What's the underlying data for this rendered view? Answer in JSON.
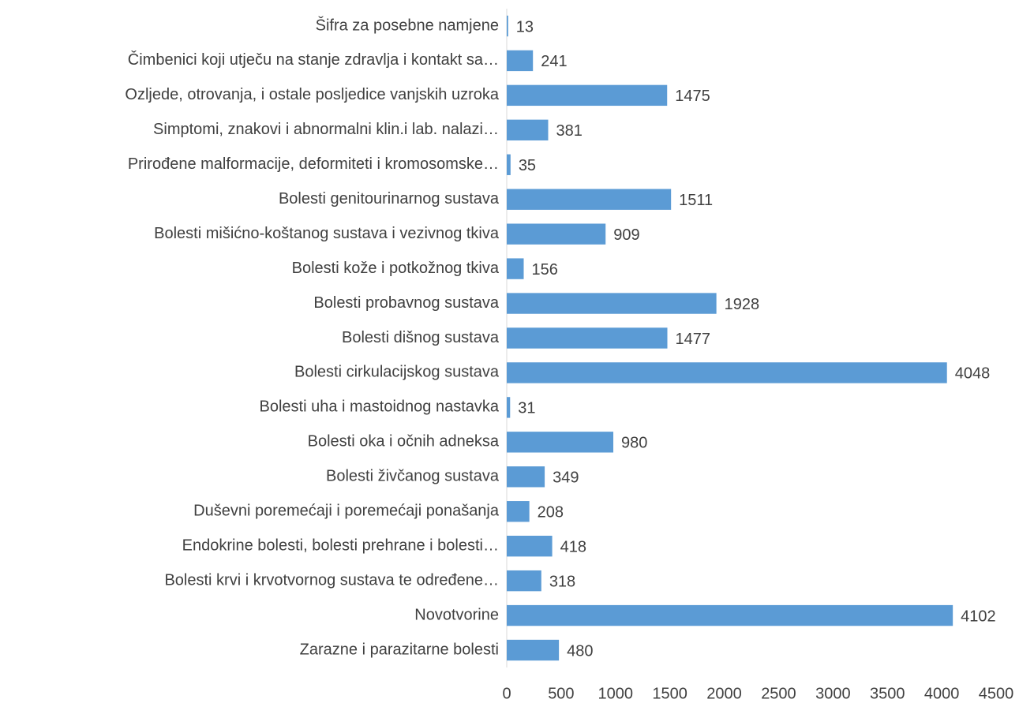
{
  "chart_data": {
    "type": "bar",
    "categories": [
      "Šifra za posebne namjene",
      "Čimbenici koji utječu na stanje zdravlja i kontakt sa…",
      "Ozljede, otrovanja, i ostale posljedice vanjskih uzroka",
      "Simptomi, znakovi i abnormalni klin.i lab. nalazi…",
      "Prirođene malformacije, deformiteti i kromosomske…",
      "Bolesti genitourinarnog sustava",
      "Bolesti mišićno-koštanog sustava i vezivnog tkiva",
      "Bolesti kože i potkožnog tkiva",
      "Bolesti probavnog sustava",
      "Bolesti dišnog sustava",
      "Bolesti cirkulacijskog sustava",
      "Bolesti uha i mastoidnog nastavka",
      "Bolesti oka i očnih adneksa",
      "Bolesti živčanog sustava",
      "Duševni poremećaji i poremećaji ponašanja",
      "Endokrine bolesti, bolesti prehrane i bolesti…",
      "Bolesti krvi i krvotvornog sustava te određene…",
      "Novotvorine",
      "Zarazne i parazitarne bolesti"
    ],
    "values": [
      13,
      241,
      1475,
      381,
      35,
      1511,
      909,
      156,
      1928,
      1477,
      4048,
      31,
      980,
      349,
      208,
      418,
      318,
      4102,
      480
    ],
    "color": "#5b9bd5",
    "xlim": [
      0,
      4500
    ],
    "xticks": [
      0,
      500,
      1000,
      1500,
      2000,
      2500,
      3000,
      3500,
      4000,
      4500
    ]
  }
}
